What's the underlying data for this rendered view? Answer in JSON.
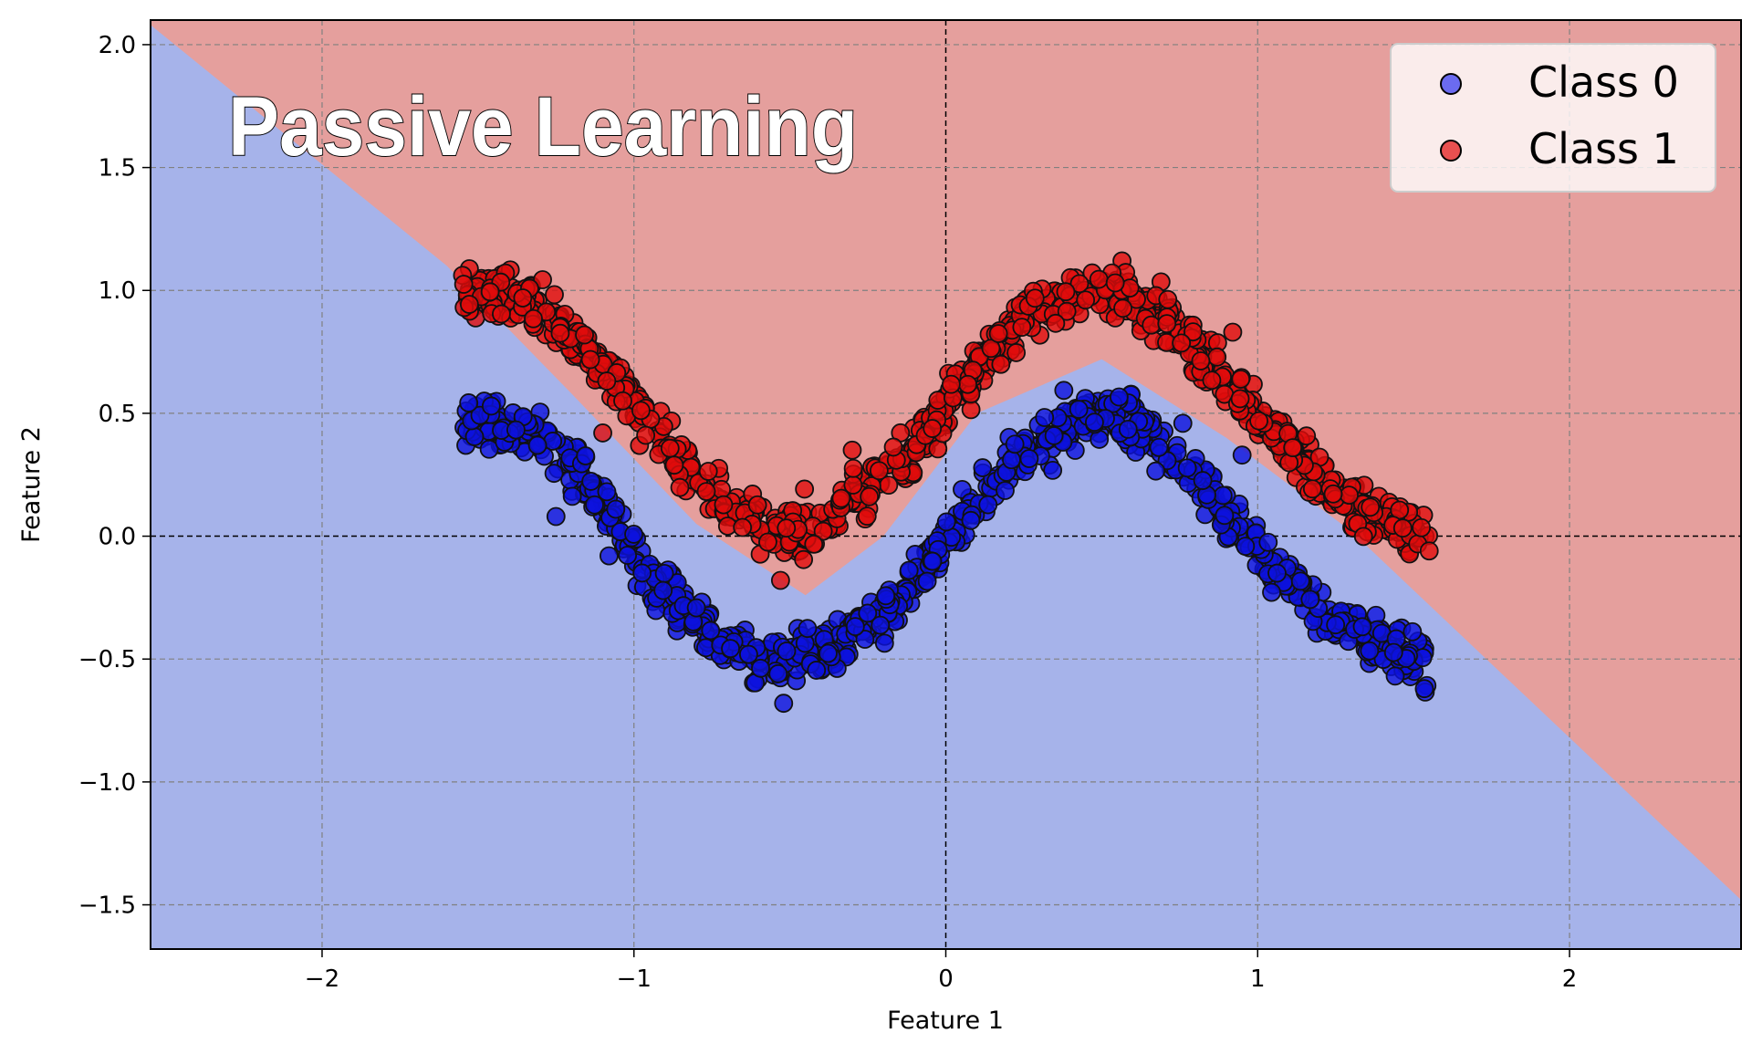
{
  "chart_data": {
    "type": "scatter",
    "title": "Passive Learning",
    "xlabel": "Feature 1",
    "ylabel": "Feature 2",
    "xlim": [
      -2.55,
      2.55
    ],
    "ylim": [
      -1.68,
      2.1
    ],
    "xticks": [
      -2,
      -1,
      0,
      1,
      2
    ],
    "yticks": [
      -1.5,
      -1.0,
      -0.5,
      0.0,
      0.5,
      1.0,
      1.5,
      2.0
    ],
    "xtick_labels": [
      "−2",
      "−1",
      "0",
      "1",
      "2"
    ],
    "ytick_labels": [
      "−1.5",
      "−1.0",
      "−0.5",
      "0.0",
      "0.5",
      "1.0",
      "1.5",
      "2.0"
    ],
    "grid": true,
    "legend_position": "top-right",
    "background_regions": {
      "class0_color": "#a6b3ea",
      "class1_color": "#e59f9d",
      "boundary_description_points": [
        [
          -2.55,
          2.08
        ],
        [
          -1.6,
          1.1
        ],
        [
          -1.2,
          0.58
        ],
        [
          -0.8,
          0.05
        ],
        [
          -0.45,
          -0.24
        ],
        [
          -0.2,
          0.0
        ],
        [
          0.1,
          0.5
        ],
        [
          0.5,
          0.72
        ],
        [
          0.9,
          0.4
        ],
        [
          1.3,
          0.02
        ],
        [
          2.55,
          -1.48
        ]
      ]
    },
    "series": [
      {
        "name": "Class 0",
        "color": "#0d12dd",
        "legend_color": "#6b6bf0",
        "curve": [
          [
            -1.55,
            0.48
          ],
          [
            -1.3,
            0.4
          ],
          [
            -1.1,
            0.15
          ],
          [
            -0.95,
            -0.15
          ],
          [
            -0.75,
            -0.42
          ],
          [
            -0.55,
            -0.52
          ],
          [
            -0.35,
            -0.45
          ],
          [
            -0.15,
            -0.25
          ],
          [
            0.0,
            0.0
          ],
          [
            0.2,
            0.3
          ],
          [
            0.45,
            0.5
          ],
          [
            0.6,
            0.48
          ],
          [
            0.8,
            0.25
          ],
          [
            1.0,
            -0.05
          ],
          [
            1.2,
            -0.3
          ],
          [
            1.4,
            -0.45
          ],
          [
            1.55,
            -0.52
          ]
        ],
        "outliers": [
          [
            -0.52,
            -0.68
          ],
          [
            -1.08,
            -0.08
          ],
          [
            -1.25,
            0.08
          ],
          [
            0.95,
            0.33
          ]
        ]
      },
      {
        "name": "Class 1",
        "color": "#e00b0b",
        "legend_color": "#e85050",
        "curve": [
          [
            -1.55,
            1.0
          ],
          [
            -1.35,
            0.98
          ],
          [
            -1.2,
            0.8
          ],
          [
            -1.0,
            0.55
          ],
          [
            -0.85,
            0.3
          ],
          [
            -0.7,
            0.12
          ],
          [
            -0.55,
            0.02
          ],
          [
            -0.4,
            0.05
          ],
          [
            -0.25,
            0.2
          ],
          [
            -0.1,
            0.35
          ],
          [
            0.05,
            0.6
          ],
          [
            0.25,
            0.9
          ],
          [
            0.5,
            1.02
          ],
          [
            0.7,
            0.9
          ],
          [
            0.9,
            0.62
          ],
          [
            1.1,
            0.35
          ],
          [
            1.3,
            0.12
          ],
          [
            1.55,
            0.0
          ]
        ],
        "outliers": [
          [
            -0.53,
            -0.18
          ],
          [
            -1.1,
            0.42
          ],
          [
            -0.3,
            0.35
          ],
          [
            0.92,
            0.83
          ],
          [
            1.55,
            -0.06
          ]
        ]
      }
    ]
  }
}
